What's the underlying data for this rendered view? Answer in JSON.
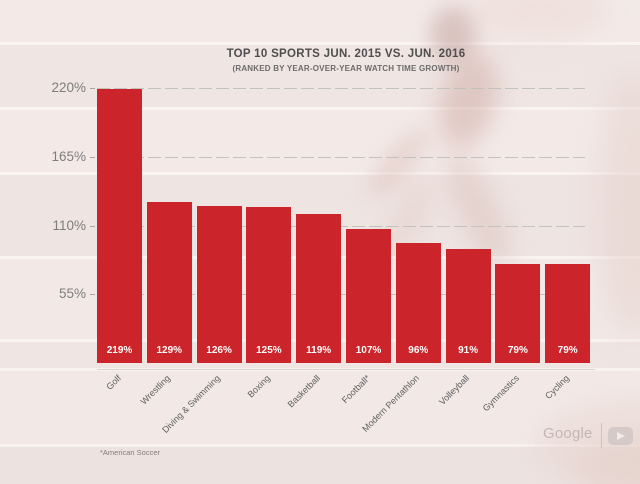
{
  "footnote": "*American Soccer",
  "branding": {
    "google_label": "Google",
    "youtube_icon": "youtube-play-icon"
  },
  "colors": {
    "bar": "#cb242a",
    "bar_value_text": "#ffffff",
    "gridline": "#c2c3bc",
    "axis_text": "#7d7d7d",
    "title_text": "#4e4e4e",
    "background": "#f1e8e6",
    "branding_text": "#c3b8b5"
  },
  "chart_data": {
    "type": "bar",
    "title": "TOP 10 SPORTS JUN. 2015 VS. JUN. 2016",
    "subtitle": "(RANKED BY YEAR-OVER-YEAR WATCH TIME GROWTH)",
    "categories": [
      "Golf",
      "Wrestling",
      "Diving & Swimming",
      "Boxing",
      "Basketball",
      "Football*",
      "Modern Pentathlon",
      "Volleyball",
      "Gymnastics",
      "Cycling"
    ],
    "values": [
      219,
      129,
      126,
      125,
      119,
      107,
      96,
      91,
      79,
      79
    ],
    "value_labels": [
      "219%",
      "129%",
      "126%",
      "125%",
      "119%",
      "107%",
      "96%",
      "91%",
      "79%",
      "79%"
    ],
    "yticks": [
      220,
      165,
      110,
      55
    ],
    "ytick_labels": [
      "220%",
      "165%",
      "110%",
      "55%"
    ],
    "ylim": [
      0,
      220
    ],
    "xlabel": "",
    "ylabel": "",
    "grid": "dashed-horizontal",
    "legend": "none"
  }
}
